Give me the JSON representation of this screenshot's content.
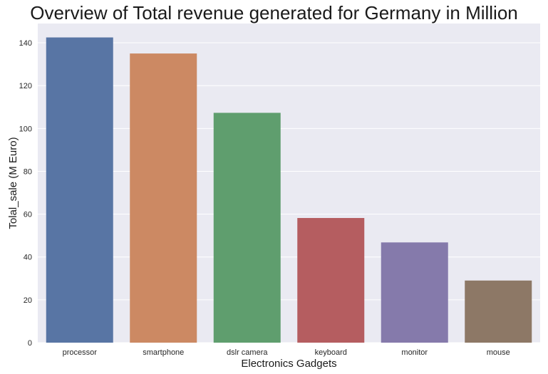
{
  "chart_data": {
    "type": "bar",
    "title": "Overview of Total revenue generated for Germany in Million",
    "xlabel": "Electronics Gadgets",
    "ylabel": "Tolal_sale (M Euro)",
    "categories": [
      "processor",
      "smartphone",
      "dslr camera",
      "keyboard",
      "monitor",
      "mouse"
    ],
    "values": [
      142.5,
      135.0,
      107.3,
      58.2,
      46.8,
      29.0
    ],
    "colors": [
      "#5875a4",
      "#cc8963",
      "#5f9e6e",
      "#b55d60",
      "#857aab",
      "#8d7866"
    ],
    "ylim": [
      0,
      149
    ],
    "yticks": [
      0,
      20,
      40,
      60,
      80,
      100,
      120,
      140
    ],
    "grid": true,
    "background": "#eaeaf2"
  }
}
